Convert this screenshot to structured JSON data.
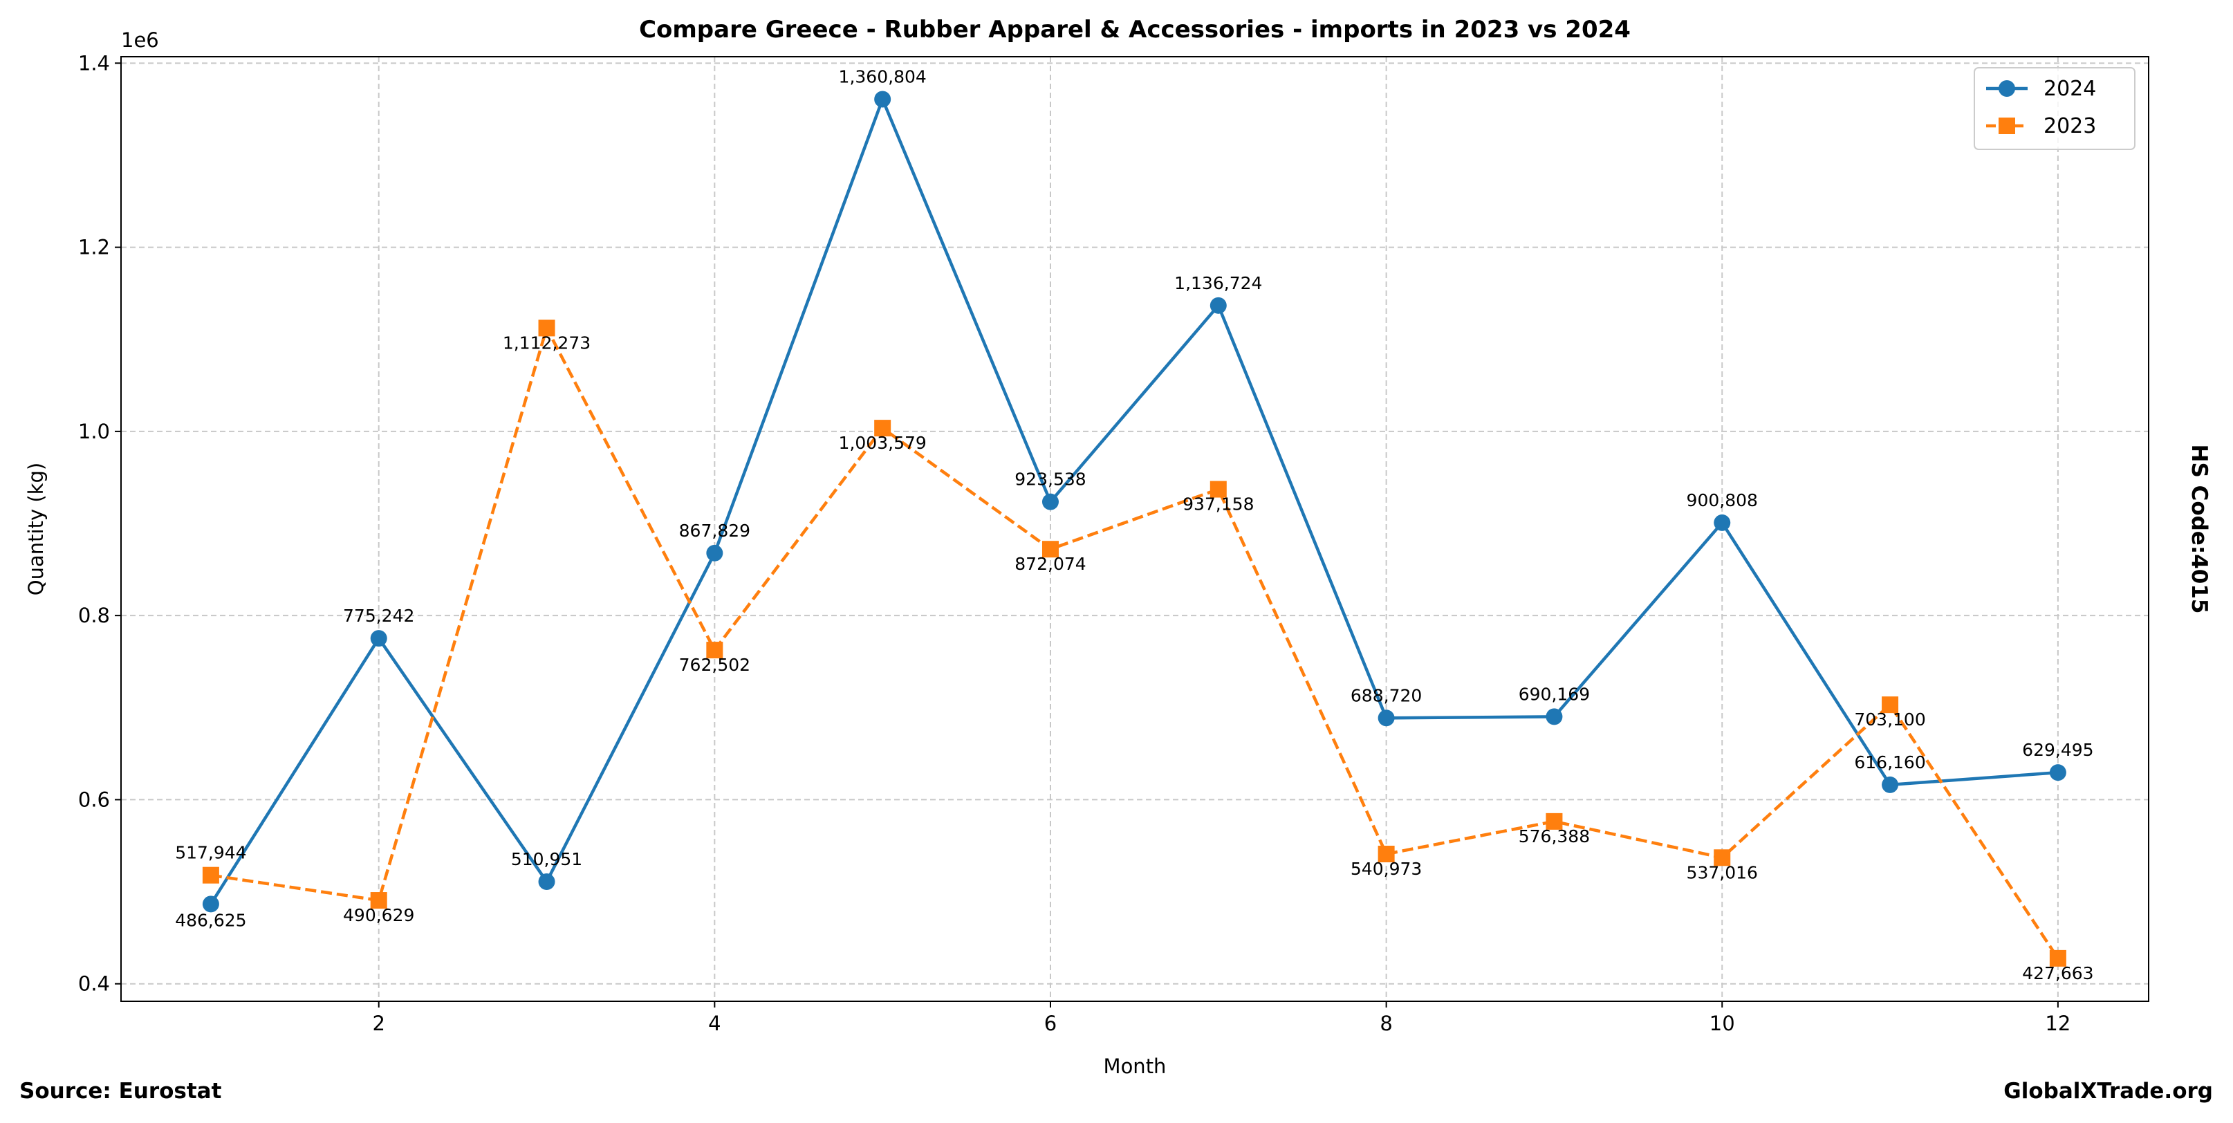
{
  "chart_data": {
    "type": "line",
    "title": "Compare Greece - Rubber Apparel & Accessories - imports in 2023 vs 2024",
    "xlabel": "Month",
    "ylabel": "Quantity (kg)",
    "y_offset_label": "1e6",
    "xlim": [
      0.465,
      12.54
    ],
    "ylim": [
      0.381,
      1.407
    ],
    "x_ticks": [
      2,
      4,
      6,
      8,
      10,
      12
    ],
    "y_ticks": [
      0.4,
      0.6,
      0.8,
      1.0,
      1.2,
      1.4
    ],
    "y_tick_labels": [
      "0.4",
      "0.6",
      "0.8",
      "1.0",
      "1.2",
      "1.4"
    ],
    "grid": true,
    "legend_position": "top-right",
    "x": [
      1,
      2,
      3,
      4,
      5,
      6,
      7,
      8,
      9,
      10,
      11,
      12
    ],
    "series": [
      {
        "name": "2024",
        "color": "#1f77b4",
        "marker": "circle",
        "linestyle": "solid",
        "values": [
          486625,
          775242,
          510951,
          867829,
          1360804,
          923538,
          1136724,
          688720,
          690169,
          900808,
          616160,
          629495
        ],
        "labels": [
          "486,625",
          "775,242",
          "510,951",
          "867,829",
          "1,360,804",
          "923,538",
          "1,136,724",
          "688,720",
          "690,169",
          "900,808",
          "616,160",
          "629,495"
        ]
      },
      {
        "name": "2023",
        "color": "#ff7f0e",
        "marker": "square",
        "linestyle": "dashed",
        "values": [
          517944,
          490629,
          1112273,
          762502,
          1003579,
          872074,
          937158,
          540973,
          576388,
          537016,
          703100,
          427663
        ],
        "labels": [
          "517,944",
          "490,629",
          "1,112,273",
          "762,502",
          "1,003,579",
          "872,074",
          "937,158",
          "540,973",
          "576,388",
          "537,016",
          "703,100",
          "427,663"
        ]
      }
    ]
  },
  "footer": {
    "source": "Source: Eurostat",
    "site": "GlobalXTrade.org",
    "hs_code": "HS Code:4015"
  }
}
